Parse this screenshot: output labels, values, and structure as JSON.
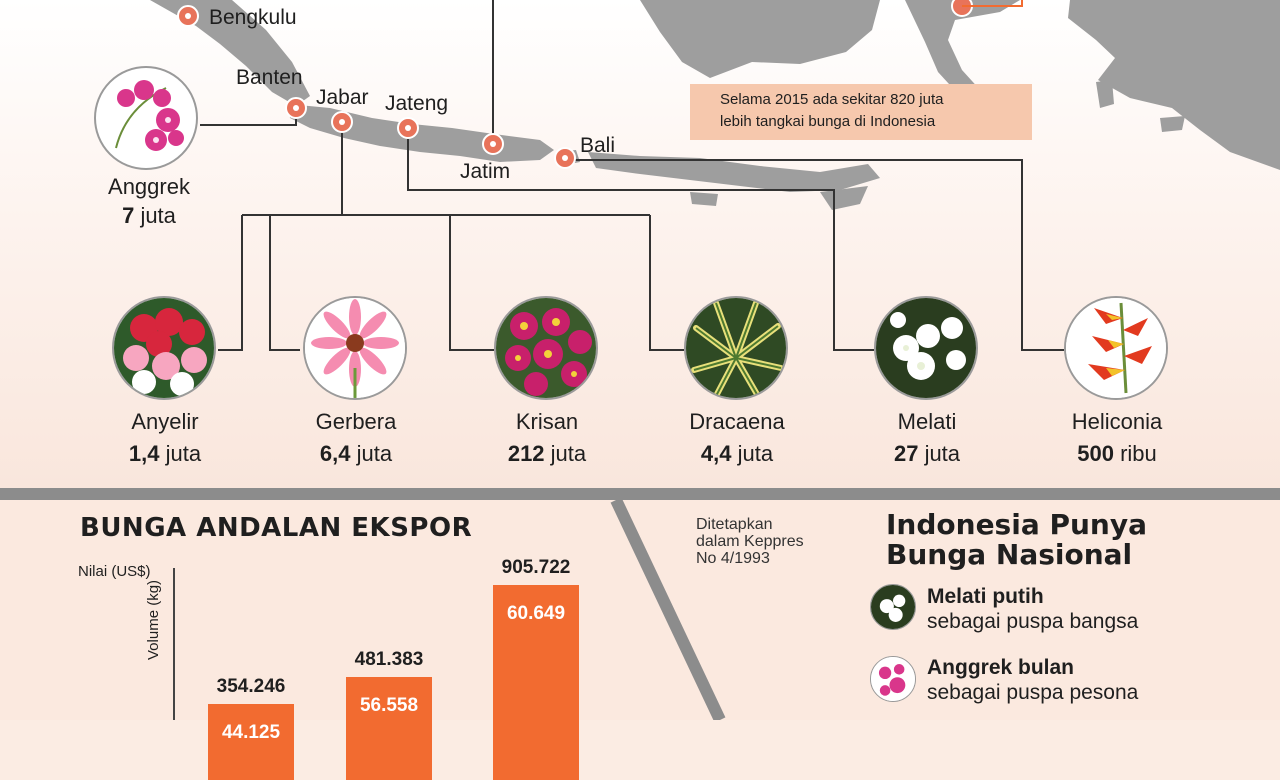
{
  "info_box": {
    "line1": "Selama 2015 ada sekitar 820 juta",
    "line2": "lebih tangkai bunga di Indonesia"
  },
  "map_labels": {
    "bengkulu": "Bengkulu",
    "banten": "Banten",
    "jabar": "Jabar",
    "jateng": "Jateng",
    "jatim": "Jatim",
    "bali": "Bali"
  },
  "colors": {
    "accent": "#f26b30",
    "marker": "#e8735a",
    "map_gray": "#9e9e9e",
    "info_box": "#f6c8ad"
  },
  "icons": {
    "anggrek": "orchid-icon",
    "anyelir": "carnation-icon",
    "gerbera": "gerbera-icon",
    "krisan": "chrysanthemum-icon",
    "dracaena": "dracaena-icon",
    "melati": "jasmine-icon",
    "heliconia": "heliconia-icon"
  },
  "flowers": {
    "anggrek": {
      "name": "Anggrek",
      "value": "7",
      "unit": "juta"
    },
    "anyelir": {
      "name": "Anyelir",
      "value": "1,4",
      "unit": "juta"
    },
    "gerbera": {
      "name": "Gerbera",
      "value": "6,4",
      "unit": "juta"
    },
    "krisan": {
      "name": "Krisan",
      "value": "212",
      "unit": "juta"
    },
    "dracaena": {
      "name": "Dracaena",
      "value": "4,4",
      "unit": "juta"
    },
    "melati": {
      "name": "Melati",
      "value": "27",
      "unit": "juta"
    },
    "heliconia": {
      "name": "Heliconia",
      "value": "500",
      "unit": "ribu"
    }
  },
  "chart_data": {
    "type": "bar",
    "title": "BUNGA ANDALAN EKSPOR",
    "ylabel": "Nilai (US$)",
    "y2label": "Volume (kg)",
    "categories": [
      "",
      "",
      ""
    ],
    "series": [
      {
        "name": "Nilai (US$)",
        "values": [
          354246,
          481383,
          905722
        ],
        "labels": [
          "354.246",
          "481.383",
          "905.722"
        ]
      },
      {
        "name": "Volume (kg)",
        "values": [
          44125,
          56558,
          60649
        ],
        "labels": [
          "44.125",
          "56.558",
          "60.649"
        ]
      }
    ],
    "ylim": [
      0,
      1000000
    ],
    "grid": false
  },
  "national": {
    "note_line1": "Ditetapkan",
    "note_line2": "dalam Keppres",
    "note_line3": "No 4/1993",
    "title_line1": "Indonesia Punya",
    "title_line2": "Bunga Nasional",
    "item1_name": "Melati putih",
    "item1_desc": "sebagai puspa bangsa",
    "item2_name": "Anggrek bulan",
    "item2_desc": "sebagai puspa pesona"
  }
}
